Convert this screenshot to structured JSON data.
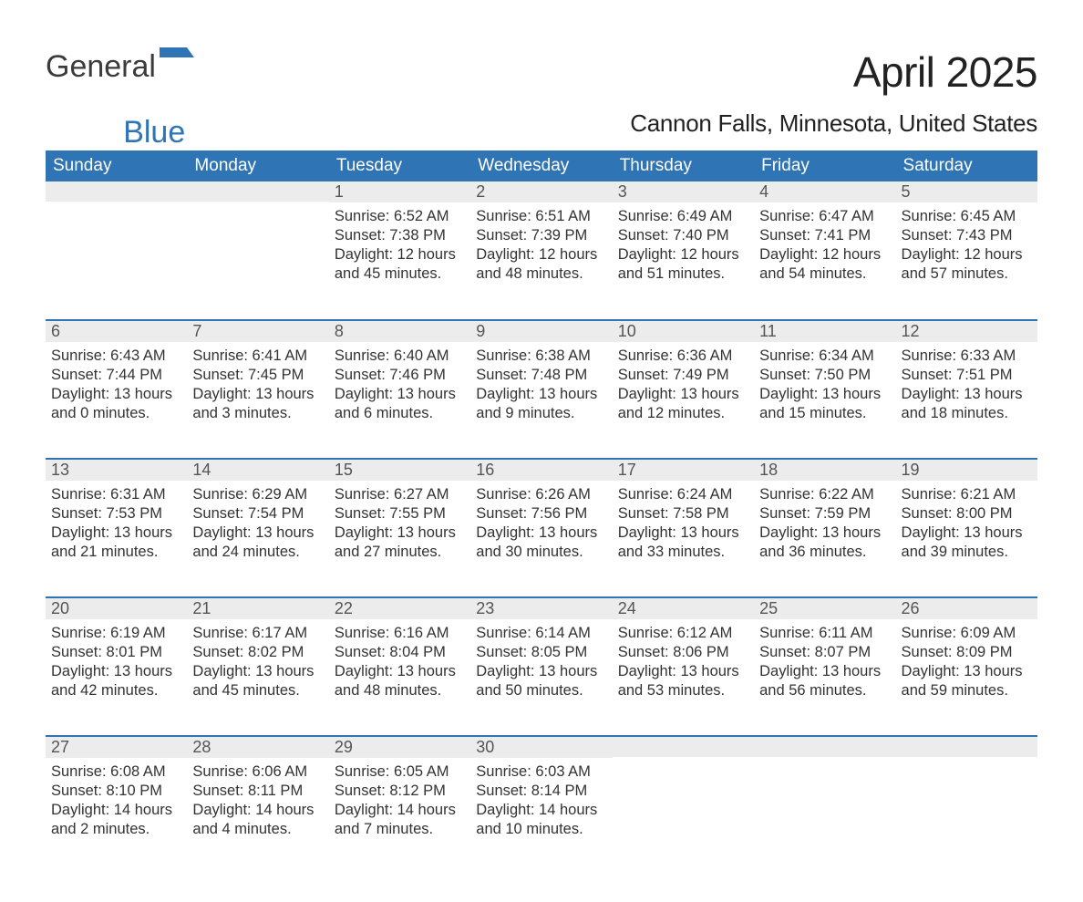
{
  "logo": {
    "word1": "General",
    "word2": "Blue",
    "flag_color": "#2f74b5"
  },
  "title": "April 2025",
  "subtitle": "Cannon Falls, Minnesota, United States",
  "style": {
    "header_bg": "#2f74b5",
    "header_text": "#ffffff",
    "daynum_bg": "#ececec",
    "daynum_text": "#555555",
    "body_text": "#333333",
    "row_divider": "#2f74b5",
    "page_bg": "#ffffff",
    "title_fontsize": 46,
    "subtitle_fontsize": 26,
    "header_fontsize": 19,
    "cell_fontsize": 16.5,
    "columns": 7,
    "rows": 5
  },
  "day_headers": [
    "Sunday",
    "Monday",
    "Tuesday",
    "Wednesday",
    "Thursday",
    "Friday",
    "Saturday"
  ],
  "weeks": [
    [
      {
        "n": "",
        "sunrise": "",
        "sunset": "",
        "daylight": ""
      },
      {
        "n": "",
        "sunrise": "",
        "sunset": "",
        "daylight": ""
      },
      {
        "n": "1",
        "sunrise": "Sunrise: 6:52 AM",
        "sunset": "Sunset: 7:38 PM",
        "daylight": "Daylight: 12 hours and 45 minutes."
      },
      {
        "n": "2",
        "sunrise": "Sunrise: 6:51 AM",
        "sunset": "Sunset: 7:39 PM",
        "daylight": "Daylight: 12 hours and 48 minutes."
      },
      {
        "n": "3",
        "sunrise": "Sunrise: 6:49 AM",
        "sunset": "Sunset: 7:40 PM",
        "daylight": "Daylight: 12 hours and 51 minutes."
      },
      {
        "n": "4",
        "sunrise": "Sunrise: 6:47 AM",
        "sunset": "Sunset: 7:41 PM",
        "daylight": "Daylight: 12 hours and 54 minutes."
      },
      {
        "n": "5",
        "sunrise": "Sunrise: 6:45 AM",
        "sunset": "Sunset: 7:43 PM",
        "daylight": "Daylight: 12 hours and 57 minutes."
      }
    ],
    [
      {
        "n": "6",
        "sunrise": "Sunrise: 6:43 AM",
        "sunset": "Sunset: 7:44 PM",
        "daylight": "Daylight: 13 hours and 0 minutes."
      },
      {
        "n": "7",
        "sunrise": "Sunrise: 6:41 AM",
        "sunset": "Sunset: 7:45 PM",
        "daylight": "Daylight: 13 hours and 3 minutes."
      },
      {
        "n": "8",
        "sunrise": "Sunrise: 6:40 AM",
        "sunset": "Sunset: 7:46 PM",
        "daylight": "Daylight: 13 hours and 6 minutes."
      },
      {
        "n": "9",
        "sunrise": "Sunrise: 6:38 AM",
        "sunset": "Sunset: 7:48 PM",
        "daylight": "Daylight: 13 hours and 9 minutes."
      },
      {
        "n": "10",
        "sunrise": "Sunrise: 6:36 AM",
        "sunset": "Sunset: 7:49 PM",
        "daylight": "Daylight: 13 hours and 12 minutes."
      },
      {
        "n": "11",
        "sunrise": "Sunrise: 6:34 AM",
        "sunset": "Sunset: 7:50 PM",
        "daylight": "Daylight: 13 hours and 15 minutes."
      },
      {
        "n": "12",
        "sunrise": "Sunrise: 6:33 AM",
        "sunset": "Sunset: 7:51 PM",
        "daylight": "Daylight: 13 hours and 18 minutes."
      }
    ],
    [
      {
        "n": "13",
        "sunrise": "Sunrise: 6:31 AM",
        "sunset": "Sunset: 7:53 PM",
        "daylight": "Daylight: 13 hours and 21 minutes."
      },
      {
        "n": "14",
        "sunrise": "Sunrise: 6:29 AM",
        "sunset": "Sunset: 7:54 PM",
        "daylight": "Daylight: 13 hours and 24 minutes."
      },
      {
        "n": "15",
        "sunrise": "Sunrise: 6:27 AM",
        "sunset": "Sunset: 7:55 PM",
        "daylight": "Daylight: 13 hours and 27 minutes."
      },
      {
        "n": "16",
        "sunrise": "Sunrise: 6:26 AM",
        "sunset": "Sunset: 7:56 PM",
        "daylight": "Daylight: 13 hours and 30 minutes."
      },
      {
        "n": "17",
        "sunrise": "Sunrise: 6:24 AM",
        "sunset": "Sunset: 7:58 PM",
        "daylight": "Daylight: 13 hours and 33 minutes."
      },
      {
        "n": "18",
        "sunrise": "Sunrise: 6:22 AM",
        "sunset": "Sunset: 7:59 PM",
        "daylight": "Daylight: 13 hours and 36 minutes."
      },
      {
        "n": "19",
        "sunrise": "Sunrise: 6:21 AM",
        "sunset": "Sunset: 8:00 PM",
        "daylight": "Daylight: 13 hours and 39 minutes."
      }
    ],
    [
      {
        "n": "20",
        "sunrise": "Sunrise: 6:19 AM",
        "sunset": "Sunset: 8:01 PM",
        "daylight": "Daylight: 13 hours and 42 minutes."
      },
      {
        "n": "21",
        "sunrise": "Sunrise: 6:17 AM",
        "sunset": "Sunset: 8:02 PM",
        "daylight": "Daylight: 13 hours and 45 minutes."
      },
      {
        "n": "22",
        "sunrise": "Sunrise: 6:16 AM",
        "sunset": "Sunset: 8:04 PM",
        "daylight": "Daylight: 13 hours and 48 minutes."
      },
      {
        "n": "23",
        "sunrise": "Sunrise: 6:14 AM",
        "sunset": "Sunset: 8:05 PM",
        "daylight": "Daylight: 13 hours and 50 minutes."
      },
      {
        "n": "24",
        "sunrise": "Sunrise: 6:12 AM",
        "sunset": "Sunset: 8:06 PM",
        "daylight": "Daylight: 13 hours and 53 minutes."
      },
      {
        "n": "25",
        "sunrise": "Sunrise: 6:11 AM",
        "sunset": "Sunset: 8:07 PM",
        "daylight": "Daylight: 13 hours and 56 minutes."
      },
      {
        "n": "26",
        "sunrise": "Sunrise: 6:09 AM",
        "sunset": "Sunset: 8:09 PM",
        "daylight": "Daylight: 13 hours and 59 minutes."
      }
    ],
    [
      {
        "n": "27",
        "sunrise": "Sunrise: 6:08 AM",
        "sunset": "Sunset: 8:10 PM",
        "daylight": "Daylight: 14 hours and 2 minutes."
      },
      {
        "n": "28",
        "sunrise": "Sunrise: 6:06 AM",
        "sunset": "Sunset: 8:11 PM",
        "daylight": "Daylight: 14 hours and 4 minutes."
      },
      {
        "n": "29",
        "sunrise": "Sunrise: 6:05 AM",
        "sunset": "Sunset: 8:12 PM",
        "daylight": "Daylight: 14 hours and 7 minutes."
      },
      {
        "n": "30",
        "sunrise": "Sunrise: 6:03 AM",
        "sunset": "Sunset: 8:14 PM",
        "daylight": "Daylight: 14 hours and 10 minutes."
      },
      {
        "n": "",
        "sunrise": "",
        "sunset": "",
        "daylight": ""
      },
      {
        "n": "",
        "sunrise": "",
        "sunset": "",
        "daylight": ""
      },
      {
        "n": "",
        "sunrise": "",
        "sunset": "",
        "daylight": ""
      }
    ]
  ]
}
